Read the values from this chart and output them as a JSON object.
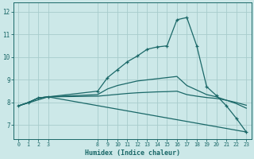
{
  "xlabel": "Humidex (Indice chaleur)",
  "bg_color": "#cce8e8",
  "grid_color": "#a8cccc",
  "line_color": "#1a6868",
  "xlim": [
    -0.5,
    23.5
  ],
  "ylim": [
    6.4,
    12.4
  ],
  "yticks": [
    7,
    8,
    9,
    10,
    11,
    12
  ],
  "xticks": [
    0,
    1,
    2,
    3,
    8,
    9,
    10,
    11,
    12,
    13,
    14,
    15,
    16,
    17,
    18,
    19,
    20,
    21,
    22,
    23
  ],
  "lines": [
    {
      "x": [
        0,
        1,
        2,
        3,
        8,
        9,
        10,
        11,
        12,
        13,
        14,
        15,
        16,
        17,
        18,
        19,
        20,
        21,
        22,
        23
      ],
      "y": [
        7.85,
        8.0,
        8.2,
        8.25,
        8.5,
        9.1,
        9.45,
        9.8,
        10.05,
        10.35,
        10.45,
        10.5,
        11.65,
        11.75,
        10.5,
        8.7,
        8.3,
        7.85,
        7.3,
        6.7
      ],
      "marker": true
    },
    {
      "x": [
        0,
        1,
        2,
        3,
        8,
        9,
        10,
        11,
        12,
        13,
        14,
        15,
        16,
        17,
        18,
        19,
        20,
        21,
        22,
        23
      ],
      "y": [
        7.85,
        8.0,
        8.2,
        8.25,
        8.35,
        8.6,
        8.75,
        8.85,
        8.95,
        9.0,
        9.05,
        9.1,
        9.15,
        8.75,
        8.55,
        8.35,
        8.25,
        8.1,
        7.95,
        7.75
      ],
      "marker": false
    },
    {
      "x": [
        0,
        1,
        2,
        3,
        8,
        9,
        10,
        11,
        12,
        13,
        14,
        15,
        16,
        17,
        18,
        19,
        20,
        21,
        22,
        23
      ],
      "y": [
        7.85,
        8.0,
        8.2,
        8.25,
        8.28,
        8.32,
        8.36,
        8.4,
        8.43,
        8.45,
        8.47,
        8.48,
        8.5,
        8.35,
        8.28,
        8.22,
        8.18,
        8.1,
        8.0,
        7.88
      ],
      "marker": false
    },
    {
      "x": [
        0,
        3,
        23
      ],
      "y": [
        7.85,
        8.25,
        6.7
      ],
      "marker": false
    }
  ],
  "figsize": [
    3.2,
    2.0
  ],
  "dpi": 100
}
